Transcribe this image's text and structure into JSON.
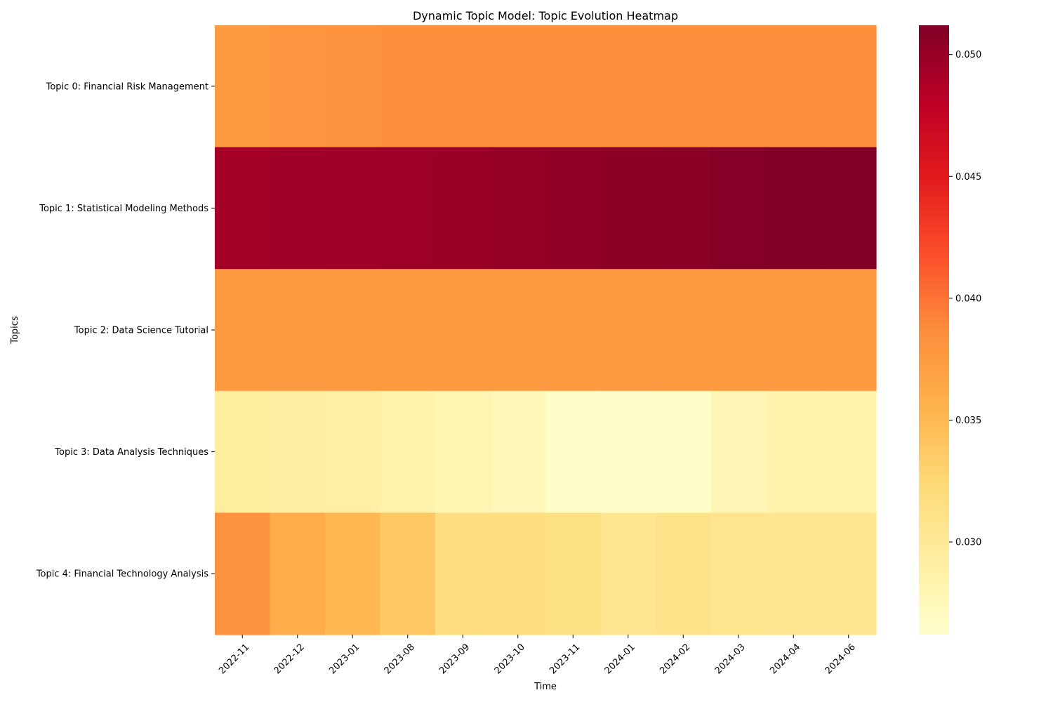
{
  "chart_data": {
    "type": "heatmap",
    "title": "Dynamic Topic Model: Topic Evolution Heatmap",
    "xlabel": "Time",
    "ylabel": "Topics",
    "x": [
      "2022-11",
      "2022-12",
      "2023-01",
      "2023-08",
      "2023-09",
      "2023-10",
      "2023-11",
      "2024-01",
      "2024-02",
      "2024-03",
      "2024-04",
      "2024-06"
    ],
    "y": [
      "Topic 0: Financial Risk Management",
      "Topic 1: Statistical Modeling Methods",
      "Topic 2: Data Science Tutorial",
      "Topic 3: Data Analysis Techniques",
      "Topic 4: Financial Technology Analysis"
    ],
    "values": [
      [
        0.0375,
        0.038,
        0.0383,
        0.0385,
        0.0385,
        0.0385,
        0.0385,
        0.0385,
        0.0385,
        0.0385,
        0.0385,
        0.0385
      ],
      [
        0.0493,
        0.0495,
        0.0496,
        0.0497,
        0.0499,
        0.0501,
        0.0504,
        0.0506,
        0.0507,
        0.051,
        0.0511,
        0.0511
      ],
      [
        0.0377,
        0.0377,
        0.0377,
        0.0377,
        0.0377,
        0.0377,
        0.0377,
        0.0377,
        0.0377,
        0.0377,
        0.0377,
        0.0377
      ],
      [
        0.0294,
        0.0292,
        0.029,
        0.0285,
        0.028,
        0.0275,
        0.0265,
        0.0263,
        0.0264,
        0.0278,
        0.0283,
        0.0283
      ],
      [
        0.0382,
        0.036,
        0.0352,
        0.0337,
        0.0318,
        0.0316,
        0.0314,
        0.0306,
        0.031,
        0.0307,
        0.0306,
        0.0305
      ]
    ],
    "colormap": "YlOrRd",
    "colorbar": {
      "range": [
        0.0262,
        0.0512
      ],
      "ticks": [
        0.03,
        0.035,
        0.04,
        0.045,
        0.05
      ],
      "tick_labels": [
        "0.030",
        "0.035",
        "0.040",
        "0.045",
        "0.050"
      ]
    },
    "grid": false
  }
}
